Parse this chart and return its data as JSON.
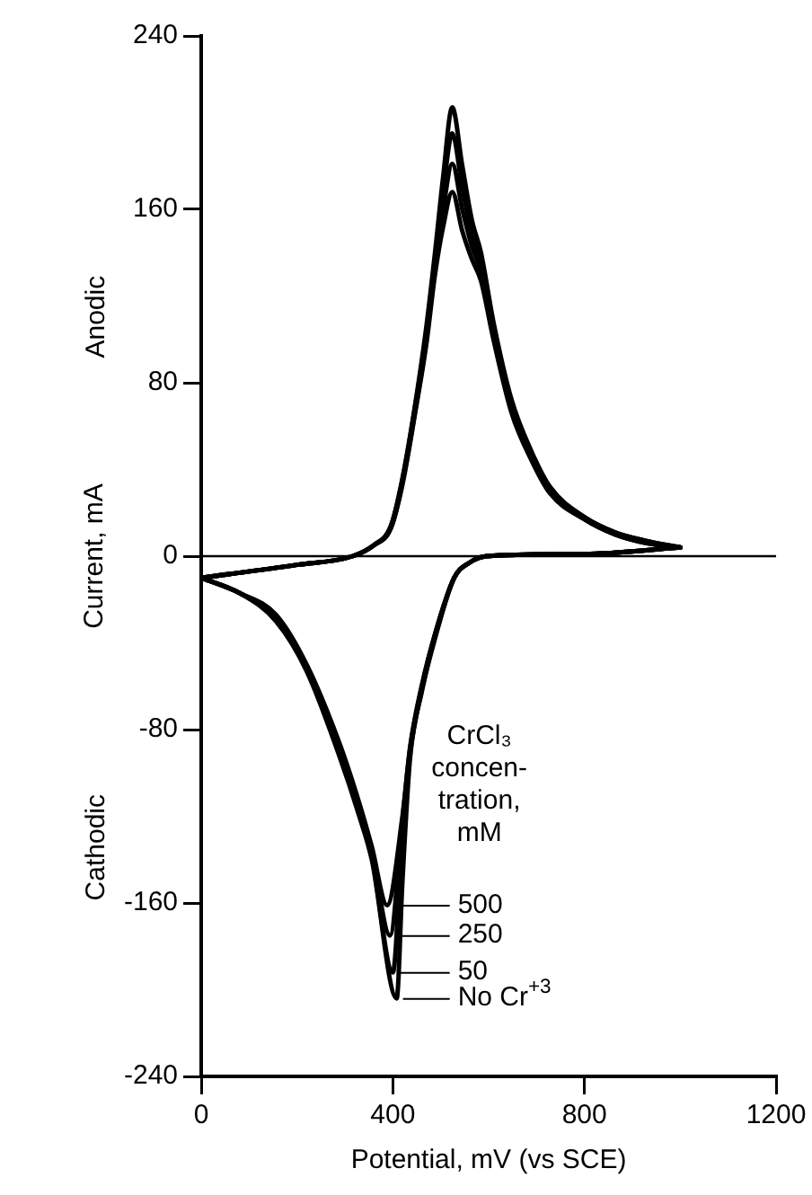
{
  "chart_data": {
    "type": "line",
    "xlabel": "Potential, mV (vs SCE)",
    "ylabel": "Current, mA",
    "legend_title": "CrCl₃ concen-tration, mM",
    "annotations": [
      "Anodic",
      "Cathodic"
    ],
    "xlim": [
      0,
      1200
    ],
    "xticks": [
      0,
      400,
      800,
      1200
    ],
    "ylim": [
      -240,
      240
    ],
    "yticks": [
      -240,
      -160,
      -80,
      0,
      80,
      160,
      240
    ],
    "grid": false,
    "legend": "bottom right",
    "marker": "none",
    "line_style": "solid",
    "ref_lines": [
      {
        "axis": "y",
        "value": 0,
        "color": "#000000"
      }
    ],
    "series": [
      {
        "name": "500",
        "color": "#000000",
        "x": [
          0,
          80,
          156,
          220,
          288,
          330,
          356,
          388,
          420,
          436,
          460,
          488,
          528,
          560,
          596,
          800,
          1000
        ],
        "values": [
          -10,
          -17,
          -27,
          -50,
          -86,
          -114,
          -134,
          -161,
          -120,
          -88,
          -60,
          -36,
          -10,
          -3,
          0,
          1,
          4
        ]
      },
      {
        "name": "250",
        "color": "#000000",
        "x": [
          0,
          80,
          156,
          220,
          288,
          330,
          356,
          394,
          420,
          436,
          460,
          488,
          528,
          560,
          596,
          800,
          1000
        ],
        "values": [
          -10,
          -17,
          -28,
          -51,
          -88,
          -116,
          -136,
          -175,
          -122,
          -89,
          -61,
          -36,
          -10,
          -3,
          0,
          1,
          4
        ]
      },
      {
        "name": "50",
        "color": "#000000",
        "x": [
          0,
          80,
          156,
          220,
          288,
          330,
          356,
          400,
          420,
          436,
          460,
          488,
          528,
          560,
          596,
          800,
          1000
        ],
        "values": [
          -10,
          -17,
          -29,
          -52,
          -90,
          -118,
          -138,
          -192,
          -126,
          -91,
          -62,
          -37,
          -10,
          -3,
          0,
          1,
          4
        ]
      },
      {
        "name": "No Cr$^{+3}$",
        "color": "#000000",
        "x": [
          0,
          80,
          156,
          220,
          288,
          330,
          356,
          408,
          420,
          436,
          460,
          488,
          528,
          560,
          596,
          800,
          1000
        ],
        "values": [
          -10,
          -17,
          -30,
          -53,
          -92,
          -120,
          -140,
          -204,
          -150,
          -93,
          -63,
          -38,
          -10,
          -3,
          0,
          1,
          4
        ]
      },
      {
        "color": "#000000",
        "x": [
          0,
          200,
          316,
          360,
          396,
          420,
          448,
          470,
          488,
          505,
          524,
          545,
          565,
          584,
          610,
          648,
          690,
          728,
          800,
          864,
          930,
          1000
        ],
        "values": [
          -10,
          -4,
          0,
          5,
          13,
          33,
          68,
          98,
          130,
          152,
          168,
          150,
          137,
          127,
          100,
          66,
          44,
          29,
          17,
          10,
          6,
          4
        ]
      },
      {
        "color": "#000000",
        "x": [
          0,
          200,
          316,
          360,
          396,
          420,
          448,
          470,
          488,
          505,
          524,
          545,
          565,
          584,
          610,
          648,
          690,
          728,
          800,
          864,
          930,
          1000
        ],
        "values": [
          -10,
          -4,
          0,
          5,
          13,
          34,
          69,
          100,
          134,
          160,
          181,
          160,
          143,
          131,
          103,
          68,
          46,
          30,
          17,
          10,
          6,
          4
        ]
      },
      {
        "color": "#000000",
        "x": [
          0,
          200,
          316,
          360,
          396,
          420,
          448,
          470,
          488,
          505,
          524,
          545,
          565,
          584,
          610,
          648,
          690,
          728,
          800,
          864,
          930,
          1000
        ],
        "values": [
          -10,
          -4,
          0,
          5,
          14,
          35,
          71,
          103,
          137,
          168,
          195,
          170,
          149,
          135,
          106,
          70,
          47,
          31,
          18,
          11,
          7,
          4
        ]
      },
      {
        "color": "#000000",
        "x": [
          0,
          200,
          316,
          360,
          396,
          420,
          448,
          470,
          488,
          505,
          524,
          545,
          565,
          584,
          610,
          648,
          690,
          728,
          800,
          864,
          930,
          1000
        ],
        "values": [
          -10,
          -4,
          0,
          5,
          14,
          36,
          72,
          106,
          140,
          175,
          207,
          180,
          155,
          140,
          108,
          72,
          48,
          32,
          18,
          11,
          7,
          4
        ]
      }
    ]
  }
}
